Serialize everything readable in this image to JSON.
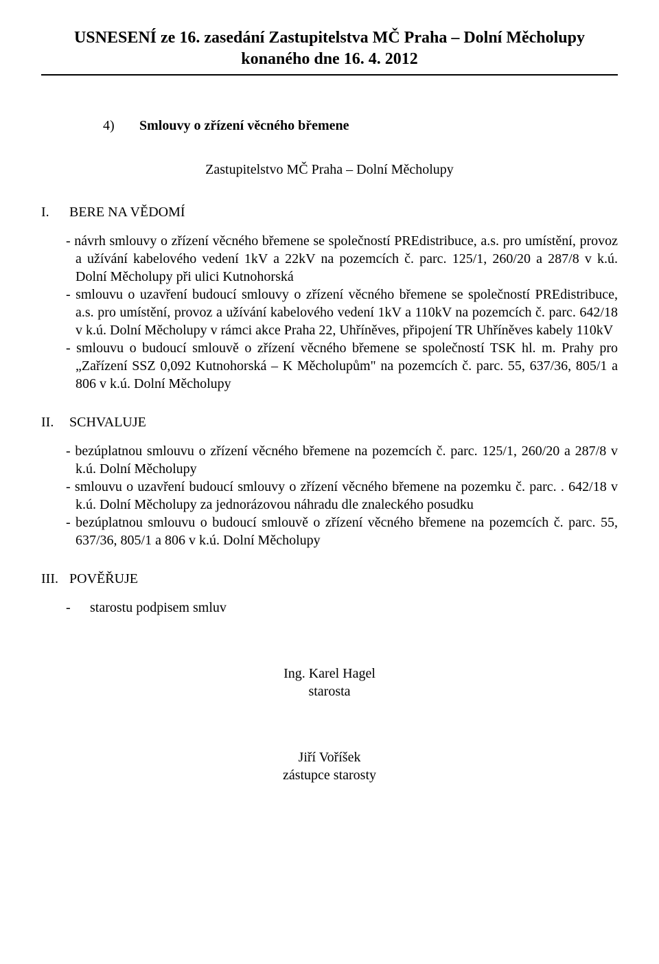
{
  "header": {
    "line1": "USNESENÍ ze 16. zasedání Zastupitelstva MČ Praha – Dolní Měcholupy",
    "line2": "konaného dne 16. 4. 2012"
  },
  "item": {
    "number": "4)",
    "title": "Smlouvy o zřízení věcného břemene"
  },
  "subheading": "Zastupitelstvo MČ Praha – Dolní Měcholupy",
  "section1": {
    "roman": "I.",
    "label": "BERE NA VĚDOMÍ",
    "items": [
      "- návrh smlouvy o zřízení věcného břemene se společností PREdistribuce, a.s. pro umístění, provoz a užívání kabelového vedení 1kV a 22kV na pozemcích č. parc. 125/1, 260/20 a 287/8  v k.ú. Dolní Měcholupy při ulici Kutnohorská",
      "- smlouvu o uzavření budoucí smlouvy o zřízení věcného břemene se společností PREdistribuce, a.s. pro umístění, provoz a užívání kabelového vedení 1kV a 110kV na pozemcích č. parc. 642/18  v k.ú. Dolní Měcholupy v rámci akce Praha 22, Uhříněves, připojení TR Uhříněves kabely 110kV",
      "- smlouvu o budoucí smlouvě o zřízení věcného břemene se společností TSK hl. m. Prahy pro „Zařízení SSZ 0,092 Kutnohorská – K Měcholupům\" na pozemcích č. parc. 55, 637/36, 805/1 a 806  v k.ú. Dolní Měcholupy"
    ]
  },
  "section2": {
    "roman": "II.",
    "label": "SCHVALUJE",
    "items": [
      "- bezúplatnou smlouvu o zřízení věcného břemene na pozemcích č. parc. 125/1, 260/20 a 287/8  v k.ú. Dolní Měcholupy",
      "- smlouvu o uzavření budoucí smlouvy o zřízení věcného břemene na pozemku č. parc. . 642/18  v k.ú. Dolní Měcholupy  za jednorázovou náhradu dle znaleckého posudku",
      "- bezúplatnou smlouvu o budoucí smlouvě o zřízení věcného břemene na pozemcích č. parc. 55, 637/36, 805/1 a 806  v k.ú. Dolní Měcholupy"
    ]
  },
  "section3": {
    "roman": "III.",
    "label": "POVĚŘUJE",
    "dash": "-",
    "text": "starostu podpisem smluv"
  },
  "signatures": {
    "sig1_name": "Ing. Karel Hagel",
    "sig1_title": "starosta",
    "sig2_name": "Jiří Voříšek",
    "sig2_title": "zástupce starosty"
  }
}
